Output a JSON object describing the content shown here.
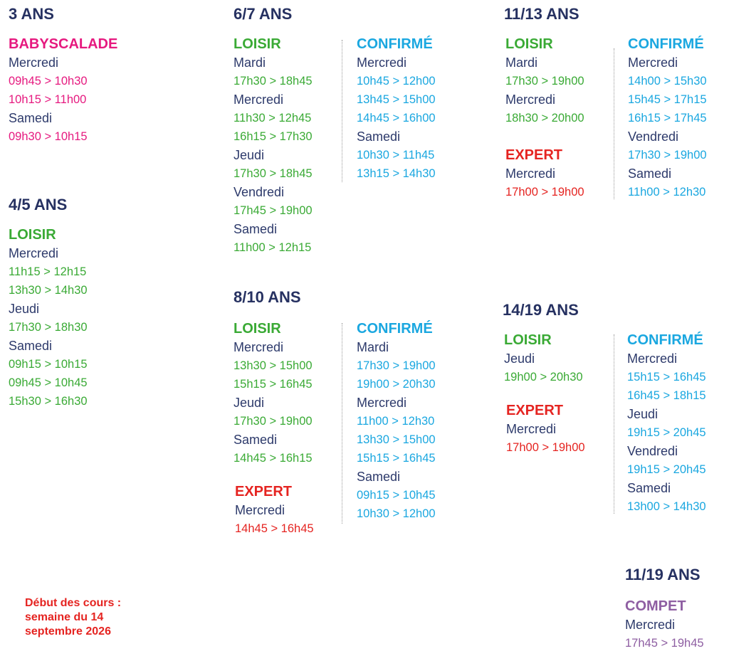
{
  "sections": [
    {
      "title": "3 ANS",
      "groups": [
        {
          "level": "BABYSCALADE",
          "color": "#e6197f",
          "days": [
            {
              "day": "Mercredi",
              "times": [
                "09h45 > 10h30",
                "10h15 > 11h00"
              ]
            },
            {
              "day": "Samedi",
              "times": [
                "09h30 > 10h15"
              ]
            }
          ]
        }
      ]
    },
    {
      "title": "4/5 ANS",
      "groups": [
        {
          "level": "LOISIR",
          "color": "#3aaa35",
          "days": [
            {
              "day": "Mercredi",
              "times": [
                "11h15 > 12h15",
                "13h30 > 14h30"
              ]
            },
            {
              "day": "Jeudi",
              "times": [
                "17h30 > 18h30"
              ]
            },
            {
              "day": "Samedi",
              "times": [
                "09h15 > 10h15",
                "09h45 > 10h45",
                "15h30 > 16h30"
              ]
            }
          ]
        }
      ]
    },
    {
      "title": "6/7 ANS",
      "groups": [
        {
          "level": "LOISIR",
          "color": "#3aaa35",
          "days": [
            {
              "day": "Mardi",
              "times": [
                "17h30 > 18h45"
              ]
            },
            {
              "day": "Mercredi",
              "times": [
                "11h30 > 12h45",
                "16h15 > 17h30"
              ]
            },
            {
              "day": "Jeudi",
              "times": [
                "17h30 > 18h45"
              ]
            },
            {
              "day": "Vendredi",
              "times": [
                "17h45 > 19h00"
              ]
            },
            {
              "day": "Samedi",
              "times": [
                "11h00 > 12h15"
              ]
            }
          ]
        },
        {
          "level": "CONFIRMÉ",
          "color": "#1aa7e0",
          "days": [
            {
              "day": "Mercredi",
              "times": [
                "10h45 > 12h00",
                "13h45 > 15h00",
                "14h45 > 16h00"
              ]
            },
            {
              "day": "Samedi",
              "times": [
                "10h30 > 11h45",
                "13h15 > 14h30"
              ]
            }
          ]
        }
      ]
    },
    {
      "title": "8/10 ANS",
      "groups": [
        {
          "level": "LOISIR",
          "color": "#3aaa35",
          "days": [
            {
              "day": "Mercredi",
              "times": [
                "13h30 > 15h00",
                "15h15 > 16h45"
              ]
            },
            {
              "day": "Jeudi",
              "times": [
                "17h30 > 19h00"
              ]
            },
            {
              "day": "Samedi",
              "times": [
                "14h45 > 16h15"
              ]
            }
          ]
        },
        {
          "level": "EXPERT",
          "color": "#e52421",
          "days": [
            {
              "day": "Mercredi",
              "times": [
                "14h45 > 16h45"
              ]
            }
          ]
        },
        {
          "level": "CONFIRMÉ",
          "color": "#1aa7e0",
          "days": [
            {
              "day": "Mardi",
              "times": [
                "17h30 > 19h00",
                "19h00 > 20h30"
              ]
            },
            {
              "day": "Mercredi",
              "times": [
                "11h00 > 12h30",
                "13h30 > 15h00",
                "15h15 > 16h45"
              ]
            },
            {
              "day": "Samedi",
              "times": [
                "09h15 > 10h45",
                "10h30 > 12h00"
              ]
            }
          ]
        }
      ]
    },
    {
      "title": "11/13 ANS",
      "groups": [
        {
          "level": "LOISIR",
          "color": "#3aaa35",
          "days": [
            {
              "day": "Mardi",
              "times": [
                "17h30 > 19h00"
              ]
            },
            {
              "day": "Mercredi",
              "times": [
                "18h30 > 20h00"
              ]
            }
          ]
        },
        {
          "level": "EXPERT",
          "color": "#e52421",
          "days": [
            {
              "day": "Mercredi",
              "times": [
                "17h00 > 19h00"
              ]
            }
          ]
        },
        {
          "level": "CONFIRMÉ",
          "color": "#1aa7e0",
          "days": [
            {
              "day": "Mercredi",
              "times": [
                "14h00 > 15h30",
                "15h45 > 17h15",
                "16h15 > 17h45"
              ]
            },
            {
              "day": "Vendredi",
              "times": [
                "17h30 > 19h00"
              ]
            },
            {
              "day": "Samedi",
              "times": [
                "11h00 > 12h30"
              ]
            }
          ]
        }
      ]
    },
    {
      "title": "14/19 ANS",
      "groups": [
        {
          "level": "LOISIR",
          "color": "#3aaa35",
          "days": [
            {
              "day": "Jeudi",
              "times": [
                "19h00 > 20h30"
              ]
            }
          ]
        },
        {
          "level": "EXPERT",
          "color": "#e52421",
          "days": [
            {
              "day": "Mercredi",
              "times": [
                "17h00 > 19h00"
              ]
            }
          ]
        },
        {
          "level": "CONFIRMÉ",
          "color": "#1aa7e0",
          "days": [
            {
              "day": "Mercredi",
              "times": [
                "15h15 > 16h45",
                "16h45 > 18h15"
              ]
            },
            {
              "day": "Jeudi",
              "times": [
                "19h15 > 20h45"
              ]
            },
            {
              "day": "Vendredi",
              "times": [
                "19h15 > 20h45"
              ]
            },
            {
              "day": "Samedi",
              "times": [
                "13h00 > 14h30"
              ]
            }
          ]
        }
      ]
    },
    {
      "title": "11/19 ANS",
      "groups": [
        {
          "level": "COMPET",
          "color": "#8e5ea2",
          "days": [
            {
              "day": "Mercredi",
              "times": [
                "17h45 > 19h45"
              ]
            }
          ]
        }
      ]
    }
  ],
  "note": {
    "lines": [
      "Début des cours :",
      "semaine du 14",
      "septembre 2026"
    ],
    "color": "#e52421"
  }
}
